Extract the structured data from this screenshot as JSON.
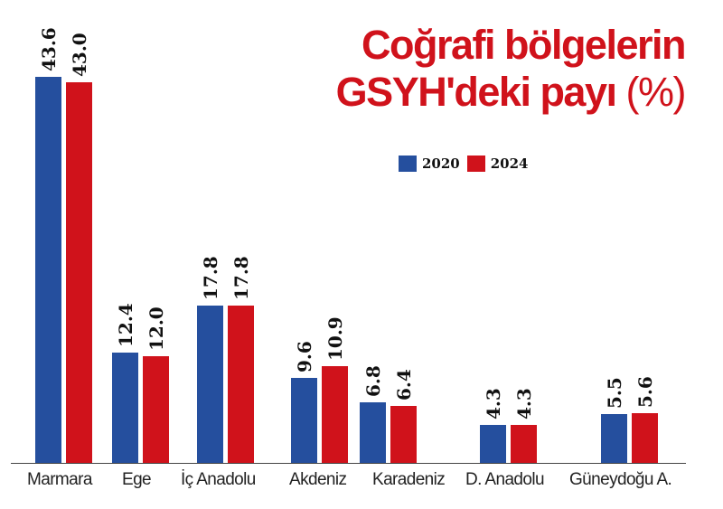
{
  "title": {
    "line1": "Coğrafi bölgelerin",
    "line2_bold": "GSYH'deki payı",
    "line2_light": "(%)"
  },
  "legend": [
    {
      "label": "2020",
      "color": "#254f9e"
    },
    {
      "label": "2024",
      "color": "#d0121b"
    }
  ],
  "chart_data": {
    "type": "bar",
    "title": "Coğrafi bölgelerin GSYH'deki payı (%)",
    "xlabel": "",
    "ylabel": "",
    "categories": [
      "Marmara",
      "Ege",
      "İç Anadolu",
      "Akdeniz",
      "Karadeniz",
      "D. Anadolu",
      "Güneydoğu A."
    ],
    "series": [
      {
        "name": "2020",
        "color": "#254f9e",
        "values": [
          43.6,
          12.4,
          17.8,
          9.6,
          6.8,
          4.3,
          5.5
        ]
      },
      {
        "name": "2024",
        "color": "#d0121b",
        "values": [
          43.0,
          12.0,
          17.8,
          10.9,
          6.4,
          4.3,
          5.6
        ]
      }
    ],
    "value_labels": {
      "2020": [
        "43.6",
        "12.4",
        "17.8",
        "9.6",
        "6.8",
        "4.3",
        "5.5"
      ],
      "2024": [
        "43.0",
        "12.0",
        "17.8",
        "10.9",
        "6.4",
        "4.3",
        "5.6"
      ]
    },
    "grid": false,
    "legend_position": "top-right"
  }
}
